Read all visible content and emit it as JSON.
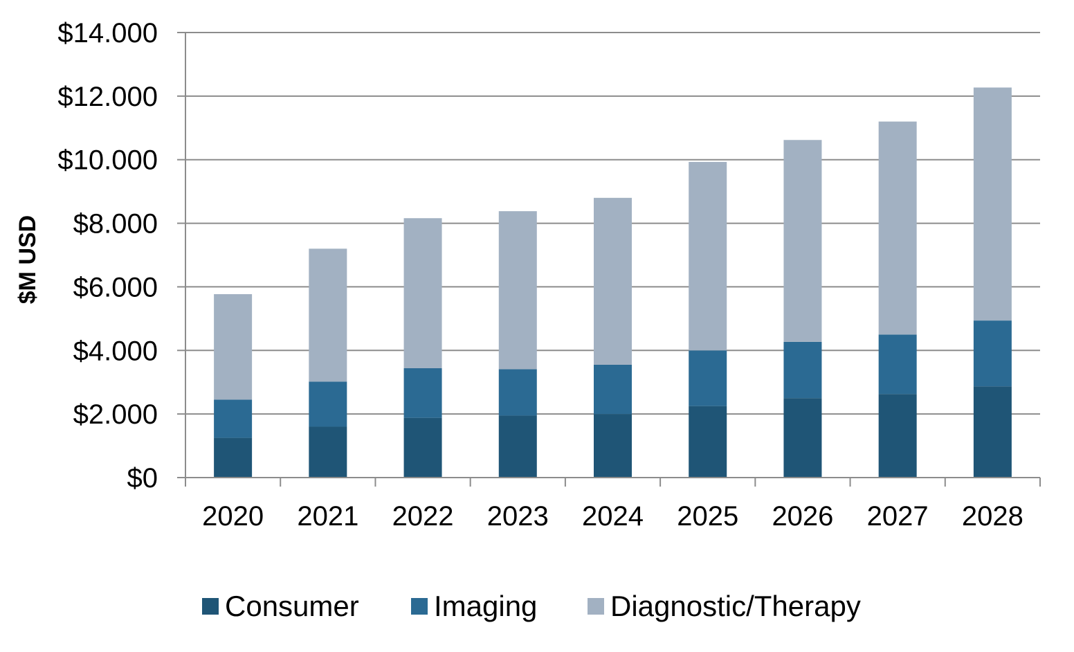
{
  "chart_data": {
    "type": "bar",
    "stacked": true,
    "ylabel": "$M USD",
    "xlabel": "",
    "ylim": [
      0,
      14000
    ],
    "ytick_values": [
      0,
      2000,
      4000,
      6000,
      8000,
      10000,
      12000,
      14000
    ],
    "ytick_labels": [
      "$0",
      "$2.000",
      "$4.000",
      "$6.000",
      "$8.000",
      "$10.000",
      "$12.000",
      "$14.000"
    ],
    "grid": true,
    "legend_placement": "bottom",
    "categories": [
      "2020",
      "2021",
      "2022",
      "2023",
      "2024",
      "2025",
      "2026",
      "2027",
      "2028"
    ],
    "series": [
      {
        "name": "Consumer",
        "color": "#1f5576",
        "values": [
          1250,
          1600,
          1880,
          1950,
          2000,
          2250,
          2500,
          2630,
          2870
        ]
      },
      {
        "name": "Imaging",
        "color": "#2b6a93",
        "values": [
          1200,
          1420,
          1560,
          1460,
          1550,
          1750,
          1770,
          1870,
          2070
        ]
      },
      {
        "name": "Diagnostic/Therapy",
        "color": "#a2b1c2",
        "values": [
          3320,
          4180,
          4720,
          4970,
          5250,
          5930,
          6350,
          6700,
          7330
        ]
      }
    ]
  }
}
